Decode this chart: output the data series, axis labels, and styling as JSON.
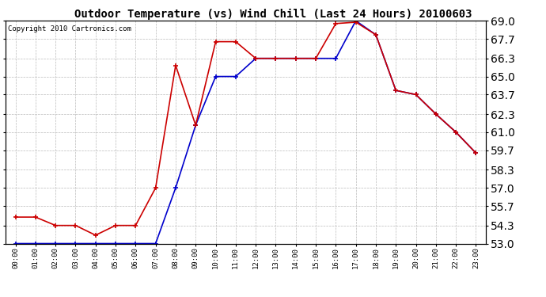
{
  "title": "Outdoor Temperature (vs) Wind Chill (Last 24 Hours) 20100603",
  "copyright": "Copyright 2010 Cartronics.com",
  "hours": [
    "00:00",
    "01:00",
    "02:00",
    "03:00",
    "04:00",
    "05:00",
    "06:00",
    "07:00",
    "08:00",
    "09:00",
    "10:00",
    "11:00",
    "12:00",
    "13:00",
    "14:00",
    "15:00",
    "16:00",
    "17:00",
    "18:00",
    "19:00",
    "20:00",
    "21:00",
    "22:00",
    "23:00"
  ],
  "temp": [
    54.9,
    54.9,
    54.3,
    54.3,
    53.6,
    54.3,
    54.3,
    57.0,
    65.8,
    61.5,
    67.5,
    67.5,
    66.3,
    66.3,
    66.3,
    66.3,
    68.8,
    68.9,
    68.0,
    64.0,
    63.7,
    62.3,
    61.0,
    59.5
  ],
  "windchill": [
    53.0,
    53.0,
    53.0,
    53.0,
    53.0,
    53.0,
    53.0,
    53.0,
    57.0,
    61.5,
    65.0,
    65.0,
    66.3,
    66.3,
    66.3,
    66.3,
    66.3,
    69.0,
    68.0,
    64.0,
    63.7,
    62.3,
    61.0,
    59.5
  ],
  "ylim": [
    53.0,
    69.0
  ],
  "yticks": [
    53.0,
    54.3,
    55.7,
    57.0,
    58.3,
    59.7,
    61.0,
    62.3,
    63.7,
    65.0,
    66.3,
    67.7,
    69.0
  ],
  "temp_color": "#cc0000",
  "windchill_color": "#0000cc",
  "bg_color": "#ffffff",
  "grid_color": "#bbbbbb",
  "title_fontsize": 10,
  "copyright_fontsize": 6.5
}
